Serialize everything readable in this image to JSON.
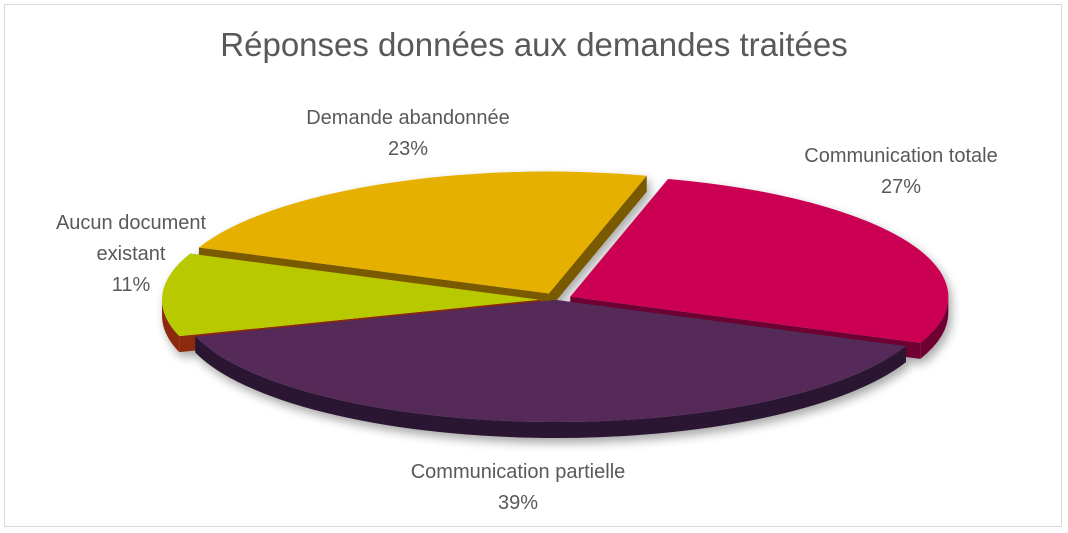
{
  "chart_data": {
    "type": "pie",
    "title": "Réponses données aux demandes traitées",
    "series": [
      {
        "name": "",
        "slices": [
          {
            "label": "Communication totale",
            "percent_label": "27%",
            "value": 27,
            "color": "#cc0052",
            "side_color": "#6e0530"
          },
          {
            "label": "Communication partielle",
            "percent_label": "39%",
            "value": 39,
            "color": "#542c58",
            "side_color": "#2a1530"
          },
          {
            "label_lines": [
              "Aucun document",
              "existant"
            ],
            "label": "Aucun document existant",
            "percent_label": "11%",
            "value": 11,
            "color": "#b8c900",
            "side_color": "#8b2a10"
          },
          {
            "label": "Demande abandonnée",
            "percent_label": "23%",
            "value": 23,
            "color": "#e6b000",
            "side_color": "#7a5a00"
          }
        ]
      }
    ],
    "legend": "none",
    "style": "3d-exploded"
  }
}
